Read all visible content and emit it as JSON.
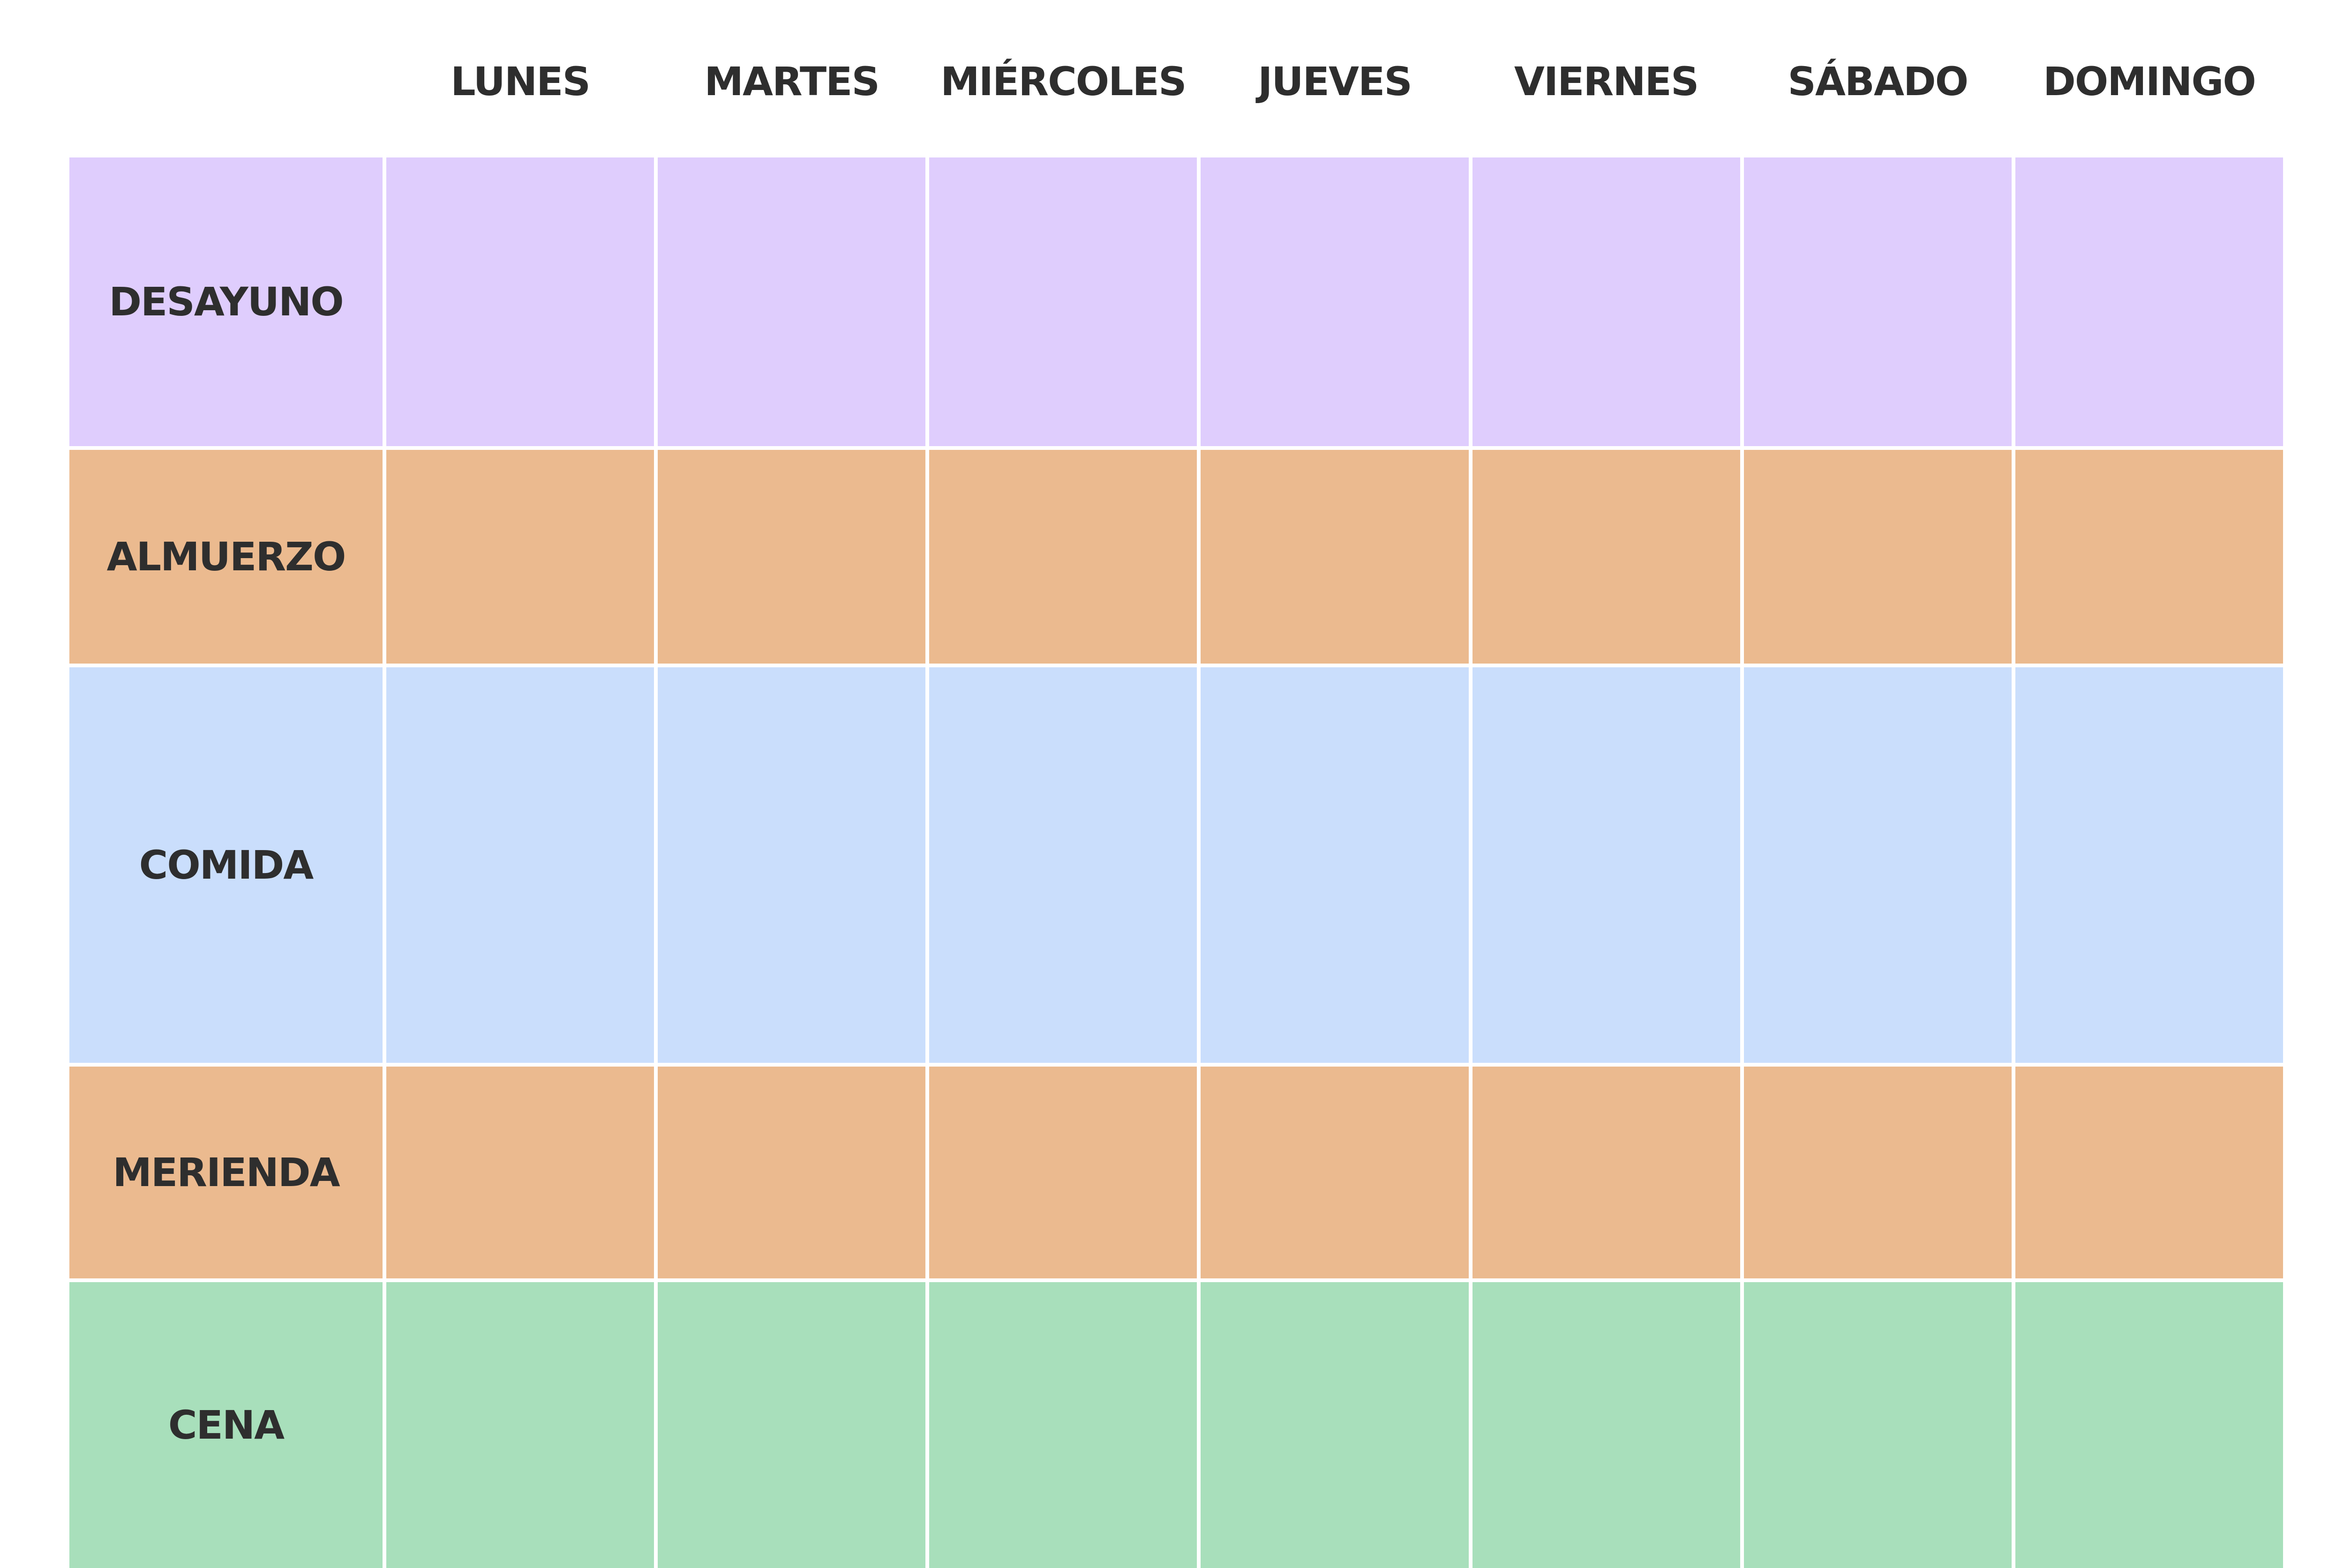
{
  "days": [
    "LUNES",
    "MARTES",
    "MIÉRCOLES",
    "JUEVES",
    "VIERNES",
    "SÁBADO",
    "DOMINGO"
  ],
  "meals": [
    {
      "label": "DESAYUNO",
      "color": "#dfcdfd"
    },
    {
      "label": "ALMUERZO",
      "color": "#ebba8f"
    },
    {
      "label": "COMIDA",
      "color": "#cadefc"
    },
    {
      "label": "MERIENDA",
      "color": "#ebba8f"
    },
    {
      "label": "CENA",
      "color": "#a8dfbb"
    }
  ]
}
